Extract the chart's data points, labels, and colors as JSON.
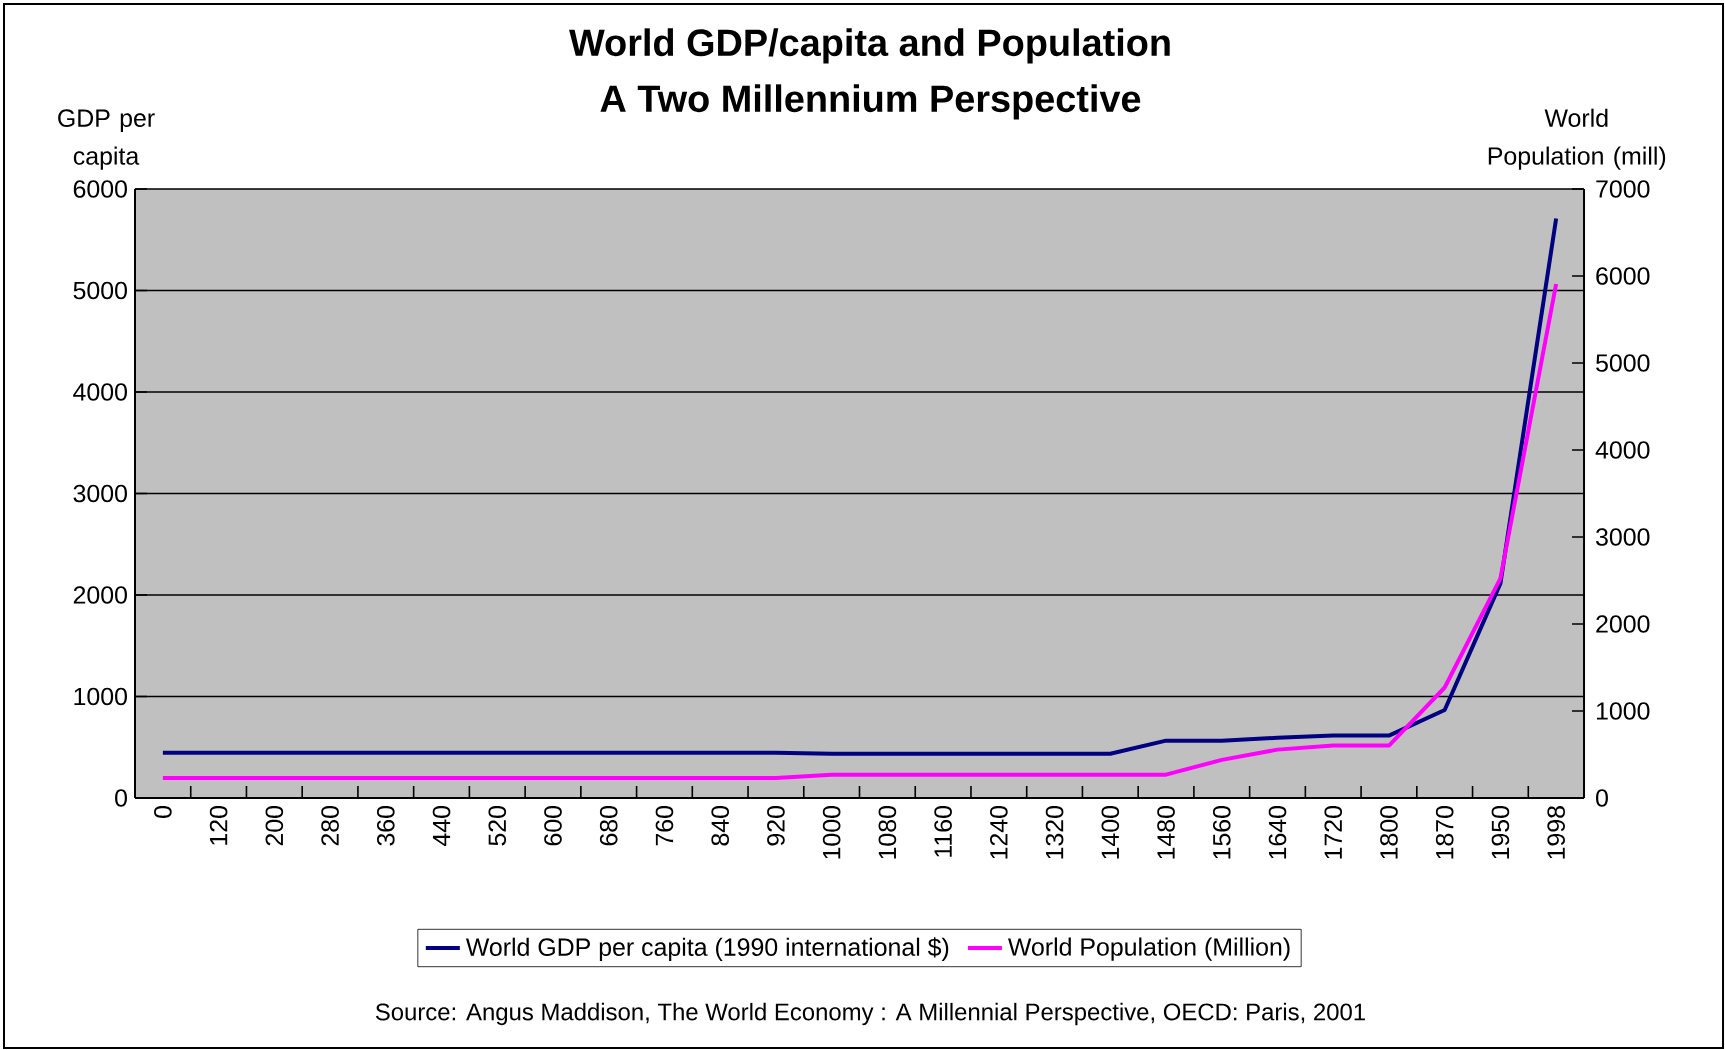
{
  "chart_data": {
    "type": "line",
    "title": "World GDP/capita and Population",
    "subtitle": "A Two Millennium Perspective",
    "ylabel": "GDP per capita",
    "y2label": "World Population (mill)",
    "categories": [
      "0",
      "120",
      "200",
      "280",
      "360",
      "440",
      "520",
      "600",
      "680",
      "760",
      "840",
      "920",
      "1000",
      "1080",
      "1160",
      "1240",
      "1320",
      "1400",
      "1480",
      "1560",
      "1640",
      "1720",
      "1800",
      "1870",
      "1950",
      "1998"
    ],
    "series": [
      {
        "name": "World GDP per capita (1990 international $)",
        "color": "#000080",
        "values": [
          445,
          445,
          445,
          445,
          445,
          445,
          445,
          445,
          445,
          445,
          445,
          445,
          436,
          436,
          436,
          436,
          436,
          436,
          565,
          565,
          593,
          615,
          615,
          867,
          2114,
          5709
        ]
      },
      {
        "name": "World Population (Million)",
        "color": "#ff00ff",
        "axis": "y2",
        "values": [
          231,
          231,
          231,
          231,
          231,
          231,
          231,
          231,
          231,
          231,
          231,
          231,
          268,
          268,
          268,
          268,
          268,
          268,
          268,
          438,
          556,
          603,
          603,
          1270,
          2524,
          5908
        ]
      }
    ],
    "ylim": [
      0,
      6000
    ],
    "yticks": [
      0,
      1000,
      2000,
      3000,
      4000,
      5000,
      6000
    ],
    "y2lim": [
      0,
      7000
    ],
    "y2ticks": [
      0,
      1000,
      2000,
      3000,
      4000,
      5000,
      6000,
      7000
    ],
    "grid": "y",
    "legend": "bottom",
    "line_style": "solid",
    "annotations": [
      "Source: Angus Maddison, The World Economy : A Millennial Perspective, OECD: Paris, 2001"
    ]
  }
}
